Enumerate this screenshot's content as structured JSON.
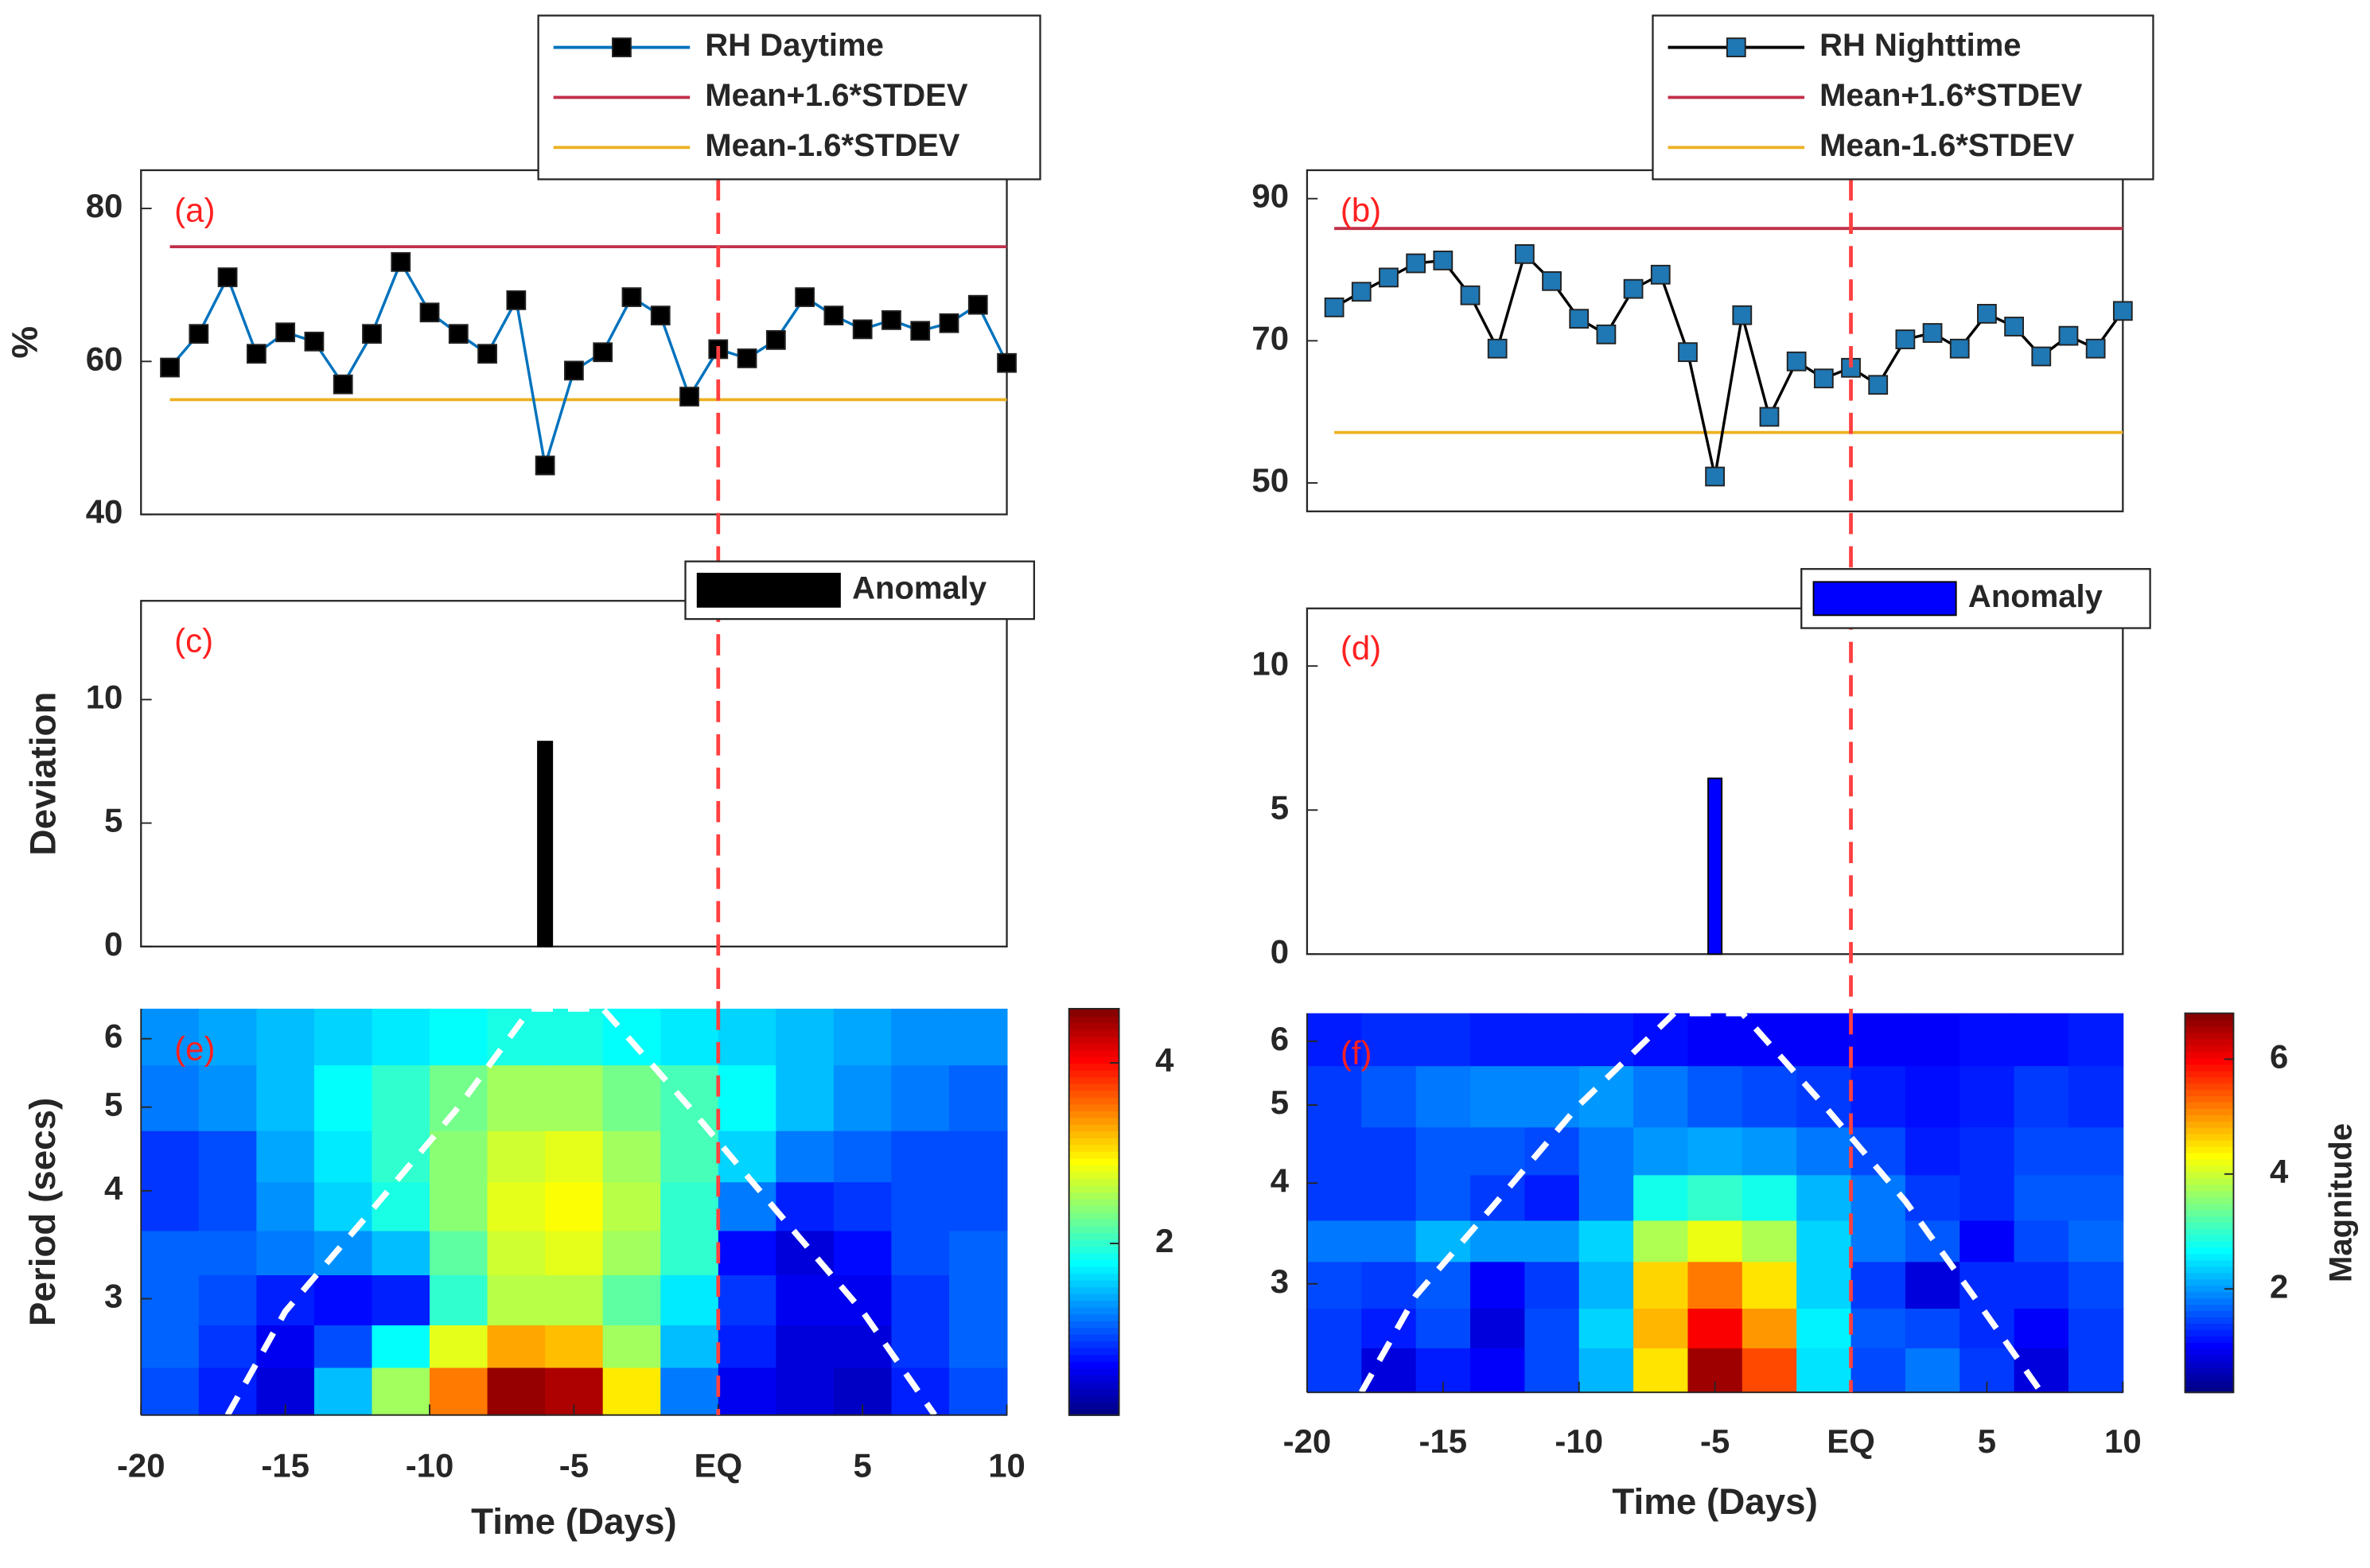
{
  "chart_data": [
    {
      "type": "line",
      "panel_label": "(a)",
      "ylabel": "%",
      "x": [
        -19,
        -18,
        -17,
        -16,
        -15,
        -14,
        -13,
        -12,
        -11,
        -10,
        -9,
        -8,
        -7,
        -6,
        -5,
        -4,
        -3,
        -2,
        -1,
        0,
        1,
        2,
        3,
        4,
        5,
        6,
        7,
        8,
        9,
        10
      ],
      "series": [
        {
          "name": "RH Daytime",
          "color": "#0072bd",
          "marker_color": "#000000",
          "values": [
            59.2,
            63.6,
            71,
            61,
            63.8,
            62.6,
            57,
            63.6,
            73,
            66.4,
            63.6,
            61,
            68,
            46.4,
            58.8,
            61.2,
            68.4,
            66,
            55.4,
            61.6,
            60.4,
            62.8,
            68.4,
            66,
            64.2,
            65.4,
            64,
            65,
            67.4,
            59.8
          ]
        }
      ],
      "hlines": [
        {
          "name": "Mean+1.6*STDEV",
          "color": "#c0304a",
          "value": 75
        },
        {
          "name": "Mean-1.6*STDEV",
          "color": "#edb120",
          "value": 55
        }
      ],
      "vline": {
        "value": 0,
        "color": "#ff4040"
      },
      "xlim": [
        -20,
        10
      ],
      "ylim": [
        40,
        85
      ],
      "yticks": [
        40,
        60,
        80
      ]
    },
    {
      "type": "line",
      "panel_label": "(b)",
      "x": [
        -19,
        -18,
        -17,
        -16,
        -15,
        -14,
        -13,
        -12,
        -11,
        -10,
        -9,
        -8,
        -7,
        -6,
        -5,
        -4,
        -3,
        -2,
        -1,
        0,
        1,
        2,
        3,
        4,
        5,
        6,
        7,
        8,
        9,
        10
      ],
      "series": [
        {
          "name": "RH Nighttime",
          "color": "#000000",
          "marker_color": "#1f77b4",
          "values": [
            74.7,
            76.9,
            78.9,
            80.9,
            81.3,
            76.4,
            68.9,
            82.2,
            78.4,
            73.1,
            70.9,
            77.3,
            79.3,
            68.4,
            50.9,
            73.6,
            59.3,
            67.1,
            64.7,
            66.2,
            63.8,
            70.2,
            71.1,
            68.9,
            73.8,
            72,
            67.8,
            70.7,
            68.9,
            74.2
          ]
        }
      ],
      "hlines": [
        {
          "name": "Mean+1.6*STDEV",
          "color": "#c0304a",
          "value": 85.8
        },
        {
          "name": "Mean-1.6*STDEV",
          "color": "#edb120",
          "value": 57.1
        }
      ],
      "vline": {
        "value": 0,
        "color": "#ff4040"
      },
      "xlim": [
        -20,
        10
      ],
      "ylim": [
        46,
        94
      ],
      "yticks": [
        50,
        70,
        90
      ]
    },
    {
      "type": "bar",
      "panel_label": "(c)",
      "ylabel": "Deviation",
      "series": [
        {
          "name": "Anomaly",
          "color": "#000000",
          "x": [
            -6
          ],
          "values": [
            8.3
          ]
        }
      ],
      "vline": {
        "value": 0,
        "color": "#ff4040"
      },
      "xlim": [
        -20,
        10
      ],
      "ylim": [
        0,
        14
      ],
      "yticks": [
        0,
        5,
        10
      ]
    },
    {
      "type": "bar",
      "panel_label": "(d)",
      "series": [
        {
          "name": "Anomaly",
          "color": "#0000ff",
          "x": [
            -5
          ],
          "values": [
            6.1
          ]
        }
      ],
      "vline": {
        "value": 0,
        "color": "#ff4040"
      },
      "xlim": [
        -20,
        10
      ],
      "ylim": [
        0,
        12
      ],
      "yticks": [
        0,
        5,
        10
      ]
    },
    {
      "type": "heatmap",
      "panel_label": "(e)",
      "ylabel": "Period (secs)",
      "xlabel": "Time (Days)",
      "x_edges": [
        -20,
        -18,
        -16,
        -14,
        -12,
        -10,
        -8,
        -6,
        -4,
        -2,
        0,
        2,
        4,
        6,
        8,
        10
      ],
      "y_edges": [
        2.2,
        2.5,
        2.8,
        3.2,
        3.6,
        4.1,
        4.7,
        5.6,
        6.5
      ],
      "z": [
        [
          1.0,
          0.8,
          0.5,
          1.5,
          2.5,
          3.5,
          4.5,
          4.4,
          3.0,
          1.2,
          0.6,
          0.5,
          0.4,
          0.8,
          1.0
        ],
        [
          1.1,
          0.9,
          0.6,
          1.0,
          1.8,
          2.8,
          3.3,
          3.2,
          2.5,
          1.5,
          0.8,
          0.5,
          0.5,
          0.9,
          1.1
        ],
        [
          1.1,
          1.0,
          0.8,
          0.7,
          0.8,
          2.0,
          2.6,
          2.6,
          2.2,
          1.7,
          0.9,
          0.6,
          0.6,
          0.9,
          1.1
        ],
        [
          1.1,
          1.1,
          1.2,
          1.3,
          1.5,
          2.2,
          2.7,
          2.8,
          2.5,
          2.0,
          0.7,
          0.5,
          0.7,
          1.0,
          1.1
        ],
        [
          0.9,
          1.0,
          1.3,
          1.6,
          1.9,
          2.4,
          2.8,
          2.9,
          2.6,
          2.0,
          1.2,
          0.8,
          0.9,
          1.0,
          1.0
        ],
        [
          0.9,
          1.0,
          1.4,
          1.7,
          2.0,
          2.4,
          2.7,
          2.8,
          2.5,
          2.1,
          1.6,
          1.2,
          1.1,
          1.0,
          1.0
        ],
        [
          1.2,
          1.3,
          1.5,
          1.8,
          2.0,
          2.3,
          2.5,
          2.5,
          2.3,
          2.1,
          1.8,
          1.5,
          1.3,
          1.2,
          1.1
        ],
        [
          1.3,
          1.4,
          1.5,
          1.6,
          1.7,
          1.8,
          1.9,
          1.9,
          1.8,
          1.7,
          1.6,
          1.5,
          1.4,
          1.3,
          1.3
        ]
      ],
      "coi": {
        "x": [
          -17,
          -15,
          -12,
          -9,
          -6.5,
          -4,
          -1,
          2,
          5,
          7.5
        ],
        "y": [
          2.2,
          2.9,
          3.8,
          5,
          6.5,
          6.5,
          5,
          3.8,
          2.9,
          2.2
        ]
      },
      "vline": {
        "value": 0,
        "color": "#ff4040"
      },
      "xlim": [
        -20,
        10
      ],
      "xticks": [
        -20,
        -15,
        -10,
        -5,
        {
          "value": 0,
          "label": "EQ"
        },
        5,
        10
      ],
      "ylim": [
        2.2,
        6.5
      ],
      "log_y": true,
      "yticks": [
        3,
        4,
        5,
        6
      ],
      "clim": [
        0.1,
        4.6
      ],
      "cticks": [
        2,
        4
      ]
    },
    {
      "type": "heatmap",
      "panel_label": "(f)",
      "xlabel": "Time (Days)",
      "colorbar_label": "Magnitude",
      "x_edges": [
        -20,
        -18,
        -16,
        -14,
        -12,
        -10,
        -8,
        -6,
        -4,
        -2,
        0,
        2,
        4,
        6,
        8,
        10
      ],
      "y_edges": [
        2.2,
        2.5,
        2.8,
        3.2,
        3.6,
        4.1,
        4.7,
        5.6,
        6.5
      ],
      "z": [
        [
          1.4,
          0.8,
          1.2,
          1.0,
          1.5,
          2.2,
          4.5,
          6.6,
          5.5,
          2.5,
          1.5,
          1.8,
          1.4,
          0.8,
          1.4
        ],
        [
          1.4,
          1.2,
          1.5,
          0.8,
          1.5,
          2.4,
          4.8,
          6.0,
          5.0,
          2.6,
          1.6,
          1.5,
          1.3,
          1.0,
          1.4
        ],
        [
          1.5,
          1.4,
          1.6,
          1.0,
          1.4,
          2.2,
          4.6,
          5.2,
          4.5,
          2.4,
          1.4,
          0.8,
          1.3,
          1.3,
          1.5
        ],
        [
          1.8,
          1.8,
          2.2,
          2.0,
          2.0,
          2.4,
          3.8,
          4.2,
          3.8,
          2.4,
          1.8,
          1.6,
          1.0,
          1.5,
          1.7
        ],
        [
          1.4,
          1.4,
          1.6,
          1.4,
          1.2,
          1.8,
          2.8,
          3.0,
          2.8,
          2.2,
          1.8,
          1.4,
          1.3,
          1.6,
          1.6
        ],
        [
          1.4,
          1.4,
          1.6,
          1.6,
          1.5,
          1.8,
          2.0,
          2.1,
          2.0,
          1.8,
          1.5,
          1.2,
          1.3,
          1.5,
          1.5
        ],
        [
          1.4,
          1.6,
          1.8,
          1.9,
          1.9,
          2.0,
          1.8,
          1.6,
          1.5,
          1.4,
          1.2,
          1.1,
          1.2,
          1.4,
          1.3
        ],
        [
          1.2,
          1.3,
          1.3,
          1.2,
          1.2,
          1.2,
          1.1,
          1.0,
          1.0,
          1.0,
          1.0,
          1.0,
          1.1,
          1.1,
          1.2
        ]
      ],
      "coi": {
        "x": [
          -18,
          -16,
          -13,
          -10,
          -6.5,
          -4,
          -1,
          2,
          4.5,
          7
        ],
        "y": [
          2.2,
          2.9,
          3.8,
          5,
          6.5,
          6.5,
          5,
          3.8,
          2.9,
          2.2
        ]
      },
      "vline": {
        "value": 0,
        "color": "#ff4040"
      },
      "xlim": [
        -20,
        10
      ],
      "xticks": [
        -20,
        -15,
        -10,
        -5,
        {
          "value": 0,
          "label": "EQ"
        },
        5,
        10
      ],
      "ylim": [
        2.2,
        6.5
      ],
      "log_y": true,
      "yticks": [
        3,
        4,
        5,
        6
      ],
      "clim": [
        0.2,
        6.8
      ],
      "cticks": [
        2,
        4,
        6
      ]
    }
  ]
}
